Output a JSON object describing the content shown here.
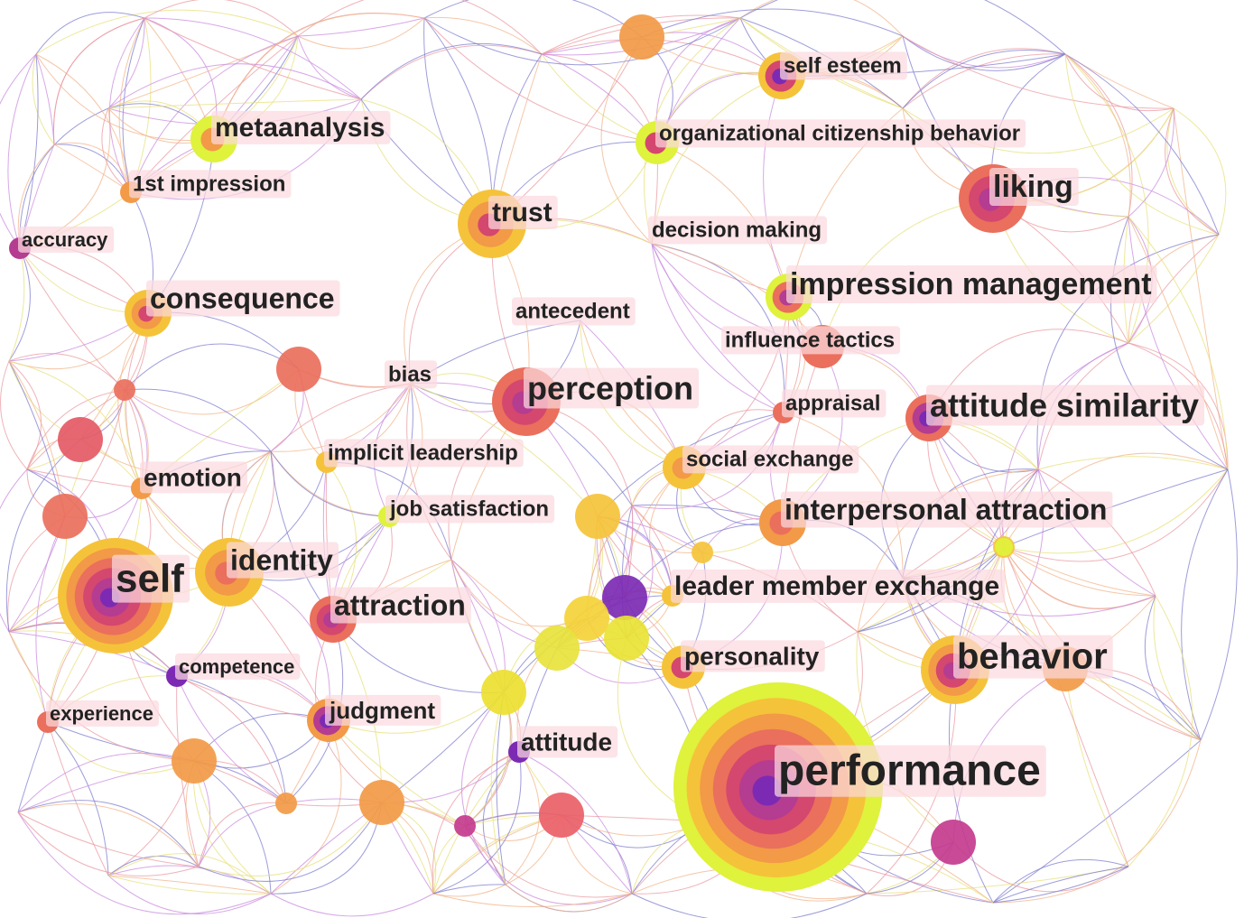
{
  "palette": {
    "ring_colors": [
      "#dff23c",
      "#f5c33a",
      "#f29a47",
      "#ea6f5c",
      "#d4476e",
      "#b43c91",
      "#7c2ab3"
    ],
    "edge_colors": [
      "#c98be0",
      "#f2b48a",
      "#e7e07a",
      "#7e7ccf",
      "#e99aa2"
    ],
    "label_bg": "#fbd9df",
    "label_text": "#222222"
  },
  "nodes": [
    {
      "id": "performance",
      "label": "performance",
      "rings": [
        "#dff23c",
        "#f5c33a",
        "#f29a47",
        "#ea6f5c",
        "#d4476e",
        "#b43c91",
        "#7c2ab3"
      ],
      "weight": 7
    },
    {
      "id": "self",
      "label": "self",
      "rings": [
        "#f5c33a",
        "#f29a47",
        "#ea6f5c",
        "#d4476e",
        "#b43c91",
        "#7c2ab3"
      ],
      "weight": 6
    },
    {
      "id": "behavior",
      "label": "behavior",
      "rings": [
        "#f5c33a",
        "#f29a47",
        "#d4476e",
        "#b43c91"
      ],
      "weight": 4
    },
    {
      "id": "perception",
      "label": "perception",
      "rings": [
        "#ea6f5c",
        "#d4476e",
        "#b43c91"
      ],
      "weight": 4
    },
    {
      "id": "attitude-similarity",
      "label": "attitude similarity",
      "rings": [
        "#ea6f5c",
        "#b43c91",
        "#7c2ab3"
      ],
      "weight": 3
    },
    {
      "id": "liking",
      "label": "liking",
      "rings": [
        "#ea6f5c",
        "#d4476e",
        "#b43c91"
      ],
      "weight": 3
    },
    {
      "id": "trust",
      "label": "trust",
      "rings": [
        "#f5c33a",
        "#f29a47",
        "#d4476e"
      ],
      "weight": 3
    },
    {
      "id": "identity",
      "label": "identity",
      "rings": [
        "#f5c33a",
        "#f29a47",
        "#ea6f5c"
      ],
      "weight": 3
    },
    {
      "id": "impression-management",
      "label": "impression management",
      "rings": [
        "#dff23c",
        "#ea6f5c",
        "#b43c91"
      ],
      "weight": 3
    },
    {
      "id": "attraction",
      "label": "attraction",
      "rings": [
        "#ea6f5c",
        "#d4476e",
        "#b43c91"
      ],
      "weight": 3
    },
    {
      "id": "consequence",
      "label": "consequence",
      "rings": [
        "#f5c33a",
        "#f29a47",
        "#d4476e"
      ],
      "weight": 2
    },
    {
      "id": "metaanalysis",
      "label": "metaanalysis",
      "rings": [
        "#dff23c",
        "#f29a47"
      ],
      "weight": 2
    },
    {
      "id": "interpersonal-attraction",
      "label": "interpersonal attraction",
      "rings": [
        "#f29a47",
        "#ea6f5c"
      ],
      "weight": 2
    },
    {
      "id": "self-esteem",
      "label": "self esteem",
      "rings": [
        "#f5c33a",
        "#d4476e",
        "#7c2ab3"
      ],
      "weight": 2
    },
    {
      "id": "organizational-citizenship-behavior",
      "label": "organizational citizenship behavior",
      "rings": [
        "#dff23c",
        "#d4476e"
      ],
      "weight": 2
    },
    {
      "id": "personality",
      "label": "personality",
      "rings": [
        "#f5c33a",
        "#d4476e"
      ],
      "weight": 2
    },
    {
      "id": "social-exchange",
      "label": "social exchange",
      "rings": [
        "#f5c33a",
        "#f29a47"
      ],
      "weight": 2
    },
    {
      "id": "judgment",
      "label": "judgment",
      "rings": [
        "#f29a47",
        "#b43c91",
        "#7c2ab3"
      ],
      "weight": 2
    },
    {
      "id": "emotion",
      "label": "emotion",
      "rings": [
        "#f29a47"
      ],
      "weight": 1
    },
    {
      "id": "1st-impression",
      "label": "1st impression",
      "rings": [
        "#f29a47"
      ],
      "weight": 1
    },
    {
      "id": "accuracy",
      "label": "accuracy",
      "rings": [
        "#b43c91"
      ],
      "weight": 1
    },
    {
      "id": "competence",
      "label": "competence",
      "rings": [
        "#7c2ab3"
      ],
      "weight": 1
    },
    {
      "id": "experience",
      "label": "experience",
      "rings": [
        "#ea6f5c"
      ],
      "weight": 1
    },
    {
      "id": "attitude",
      "label": "attitude",
      "rings": [
        "#7c2ab3"
      ],
      "weight": 1
    },
    {
      "id": "appraisal",
      "label": "appraisal",
      "rings": [
        "#ea6f5c"
      ],
      "weight": 1
    },
    {
      "id": "implicit-leadership",
      "label": "implicit leadership",
      "rings": [
        "#f5c33a"
      ],
      "weight": 1
    },
    {
      "id": "job-satisfaction",
      "label": "job satisfaction",
      "rings": [
        "#dff23c"
      ],
      "weight": 1
    },
    {
      "id": "leader-member-exchange",
      "label": "leader member exchange",
      "rings": [
        "#f5c33a"
      ],
      "weight": 1
    },
    {
      "id": "decision-making",
      "label": "decision making",
      "rings": [],
      "weight": 0
    },
    {
      "id": "antecedent",
      "label": "antecedent",
      "rings": [],
      "weight": 0
    },
    {
      "id": "influence-tactics",
      "label": "influence tactics",
      "rings": [
        "#ea6f5c"
      ],
      "weight": 2
    },
    {
      "id": "bias",
      "label": "bias",
      "rings": [],
      "weight": 0
    }
  ],
  "unlabeled_nodes": [
    {
      "id": "u1",
      "color": "#f29a47"
    },
    {
      "id": "u2",
      "color": "#ea6f5c"
    },
    {
      "id": "u3",
      "color": "#ea6f5c"
    },
    {
      "id": "u4",
      "color": "#e45a65"
    },
    {
      "id": "u5",
      "color": "#ea6f5c"
    },
    {
      "id": "u6",
      "color": "#f5c33a"
    },
    {
      "id": "u7",
      "color": "#f5c33a"
    },
    {
      "id": "u8",
      "color": "#7c2ab3"
    },
    {
      "id": "u9",
      "color": "#f5d23a"
    },
    {
      "id": "u10",
      "color": "#e7e33c"
    },
    {
      "id": "u11",
      "color": "#e9e335"
    },
    {
      "id": "u12",
      "color": "#ecdf30"
    },
    {
      "id": "u13",
      "color": "#f29a47"
    },
    {
      "id": "u14",
      "color": "#f29a47"
    },
    {
      "id": "u15",
      "color": "#f29a47"
    },
    {
      "id": "u16",
      "color": "#ea5f68"
    },
    {
      "id": "u17",
      "color": "#c43b8e"
    },
    {
      "id": "u18",
      "color": "#c43b8e"
    },
    {
      "id": "u19",
      "color": "#f29a47"
    },
    {
      "id": "u20",
      "color": "#f5c33a"
    },
    {
      "id": "u21",
      "color": "#dff23c"
    },
    {
      "id": "u22",
      "color": "#c43b8e"
    }
  ]
}
